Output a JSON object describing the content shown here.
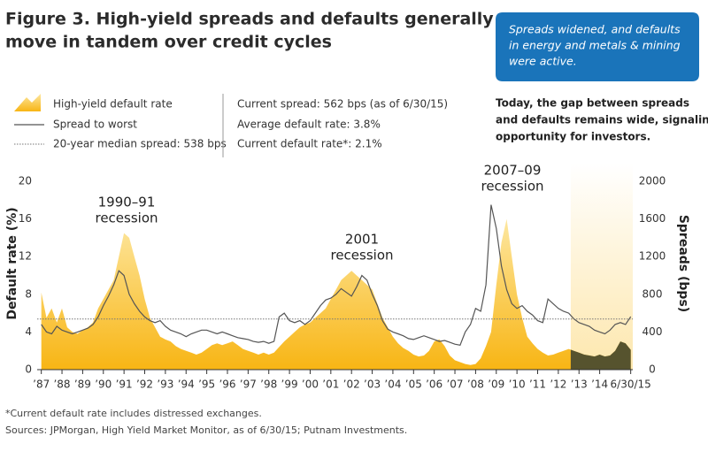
{
  "chart_data": {
    "type": "area-line",
    "title": [
      "Figure 3. High-yield spreads and defaults generally",
      "move in tandem over credit cycles"
    ],
    "callout": [
      "Spreads widened, and defaults",
      "in energy and metals & mining",
      "were active."
    ],
    "note": [
      "Today, the gap between spreads",
      "and defaults remains wide, signaling",
      "opportunity for investors."
    ],
    "stats": [
      "Current spread: 562 bps (as of 6/30/15)",
      "Average default rate: 3.8%",
      "Current default rate*: 2.1%"
    ],
    "median_label": "20-year median spread: 538 bps",
    "median_spread": 538,
    "ylabel": "Default rate (%)",
    "y2label": "Spreads (bps)",
    "annotations": [
      [
        "1990–91",
        "recession"
      ],
      [
        "2001",
        "recession"
      ],
      [
        "2007–09",
        "recession"
      ]
    ],
    "footnotes": [
      "*Current default rate includes distressed exchanges.",
      "Sources: JPMorgan, High Yield Market Monitor, as of 6/30/15; Putnam Investments."
    ],
    "xlim": [
      1986.8,
      2015.6
    ],
    "ylim": [
      0,
      20
    ],
    "y2lim": [
      0,
      2000
    ],
    "yticks": [
      0,
      4,
      8,
      12,
      16,
      20
    ],
    "y2ticks": [
      0,
      400,
      800,
      1200,
      1600,
      2000
    ],
    "xticks": [
      {
        "value": 1987,
        "label": "’87"
      },
      {
        "value": 1988,
        "label": "’88"
      },
      {
        "value": 1989,
        "label": "’89"
      },
      {
        "value": 1990,
        "label": "’90"
      },
      {
        "value": 1991,
        "label": "’91"
      },
      {
        "value": 1992,
        "label": "’92"
      },
      {
        "value": 1993,
        "label": "’93"
      },
      {
        "value": 1994,
        "label": "’94"
      },
      {
        "value": 1995,
        "label": "’95"
      },
      {
        "value": 1996,
        "label": "’96"
      },
      {
        "value": 1997,
        "label": "’97"
      },
      {
        "value": 1998,
        "label": "’98"
      },
      {
        "value": 1999,
        "label": "’99"
      },
      {
        "value": 2000,
        "label": "’00"
      },
      {
        "value": 2001,
        "label": "’01"
      },
      {
        "value": 2002,
        "label": "’02"
      },
      {
        "value": 2003,
        "label": "’03"
      },
      {
        "value": 2004,
        "label": "’04"
      },
      {
        "value": 2005,
        "label": "’05"
      },
      {
        "value": 2006,
        "label": "’06"
      },
      {
        "value": 2007,
        "label": "’07"
      },
      {
        "value": 2008,
        "label": "’08"
      },
      {
        "value": 2009,
        "label": "’09"
      },
      {
        "value": 2010,
        "label": "’10"
      },
      {
        "value": 2011,
        "label": "’11"
      },
      {
        "value": 2012,
        "label": "’12"
      },
      {
        "value": 2013,
        "label": "’13"
      },
      {
        "value": 2014,
        "label": "’14"
      },
      {
        "value": 2015.5,
        "label": "6/30/15"
      }
    ],
    "highlight_xlim": [
      2012.6,
      2015.6
    ],
    "highlight_area_color": "#56532e",
    "median_color": "#777777",
    "x": [
      1987,
      1987.25,
      1987.5,
      1987.75,
      1988,
      1988.25,
      1988.5,
      1988.75,
      1989,
      1989.25,
      1989.5,
      1989.75,
      1990,
      1990.25,
      1990.5,
      1990.75,
      1991,
      1991.25,
      1991.5,
      1991.75,
      1992,
      1992.25,
      1992.5,
      1992.75,
      1993,
      1993.25,
      1993.5,
      1993.75,
      1994,
      1994.25,
      1994.5,
      1994.75,
      1995,
      1995.25,
      1995.5,
      1995.75,
      1996,
      1996.25,
      1996.5,
      1996.75,
      1997,
      1997.25,
      1997.5,
      1997.75,
      1998,
      1998.25,
      1998.5,
      1998.75,
      1999,
      1999.25,
      1999.5,
      1999.75,
      2000,
      2000.25,
      2000.5,
      2000.75,
      2001,
      2001.25,
      2001.5,
      2001.75,
      2002,
      2002.25,
      2002.5,
      2002.75,
      2003,
      2003.25,
      2003.5,
      2003.75,
      2004,
      2004.25,
      2004.5,
      2004.75,
      2005,
      2005.25,
      2005.5,
      2005.75,
      2006,
      2006.25,
      2006.5,
      2006.75,
      2007,
      2007.25,
      2007.5,
      2007.75,
      2008,
      2008.25,
      2008.5,
      2008.75,
      2009,
      2009.25,
      2009.5,
      2009.75,
      2010,
      2010.25,
      2010.5,
      2010.75,
      2011,
      2011.25,
      2011.5,
      2011.75,
      2012,
      2012.25,
      2012.5,
      2012.75,
      2013,
      2013.25,
      2013.5,
      2013.75,
      2014,
      2014.25,
      2014.5,
      2014.75,
      2015,
      2015.25,
      2015.5
    ],
    "series": [
      {
        "name": "High-yield default rate",
        "color": "#f8b514",
        "axis": "y",
        "values": [
          8.2,
          5.5,
          6.5,
          5.0,
          6.5,
          4.5,
          4.0,
          3.8,
          4.2,
          4.5,
          5.0,
          6.5,
          7.5,
          8.5,
          9.5,
          12.0,
          14.5,
          14.0,
          12.0,
          10.0,
          7.5,
          5.5,
          4.5,
          3.5,
          3.2,
          3.0,
          2.5,
          2.2,
          2.0,
          1.8,
          1.6,
          1.8,
          2.2,
          2.6,
          2.8,
          2.6,
          2.8,
          3.0,
          2.6,
          2.2,
          2.0,
          1.8,
          1.6,
          1.8,
          1.6,
          1.8,
          2.4,
          3.0,
          3.5,
          4.0,
          4.5,
          4.8,
          5.0,
          5.5,
          6.0,
          6.5,
          7.5,
          8.5,
          9.5,
          10.0,
          10.5,
          10.0,
          9.5,
          9.0,
          8.5,
          7.0,
          5.5,
          4.5,
          3.5,
          2.8,
          2.3,
          2.0,
          1.6,
          1.4,
          1.5,
          2.0,
          3.0,
          3.2,
          2.5,
          1.5,
          1.0,
          0.8,
          0.6,
          0.5,
          0.6,
          1.2,
          2.5,
          4.0,
          9.0,
          13.5,
          16.0,
          12.0,
          8.0,
          5.5,
          3.5,
          2.8,
          2.2,
          1.8,
          1.5,
          1.6,
          1.8,
          2.0,
          2.2,
          2.0,
          1.8,
          1.6,
          1.5,
          1.4,
          1.6,
          1.4,
          1.5,
          2.0,
          3.0,
          2.8,
          2.1
        ]
      },
      {
        "name": "Spread to worst",
        "color": "#555555",
        "axis": "y2",
        "values": [
          480,
          400,
          380,
          460,
          420,
          400,
          380,
          400,
          420,
          440,
          480,
          560,
          680,
          780,
          900,
          1050,
          1000,
          800,
          700,
          620,
          560,
          520,
          500,
          520,
          460,
          420,
          400,
          380,
          350,
          380,
          400,
          420,
          420,
          400,
          380,
          400,
          380,
          360,
          340,
          330,
          320,
          300,
          290,
          300,
          280,
          300,
          560,
          600,
          520,
          500,
          520,
          480,
          520,
          600,
          680,
          740,
          760,
          800,
          860,
          820,
          780,
          880,
          1000,
          950,
          800,
          680,
          520,
          430,
          400,
          380,
          360,
          330,
          320,
          340,
          360,
          340,
          320,
          300,
          310,
          290,
          270,
          260,
          400,
          480,
          650,
          620,
          900,
          1750,
          1500,
          1100,
          850,
          700,
          650,
          680,
          620,
          580,
          520,
          500,
          750,
          700,
          650,
          620,
          600,
          540,
          500,
          480,
          460,
          420,
          400,
          380,
          420,
          480,
          500,
          480,
          562
        ]
      }
    ]
  }
}
